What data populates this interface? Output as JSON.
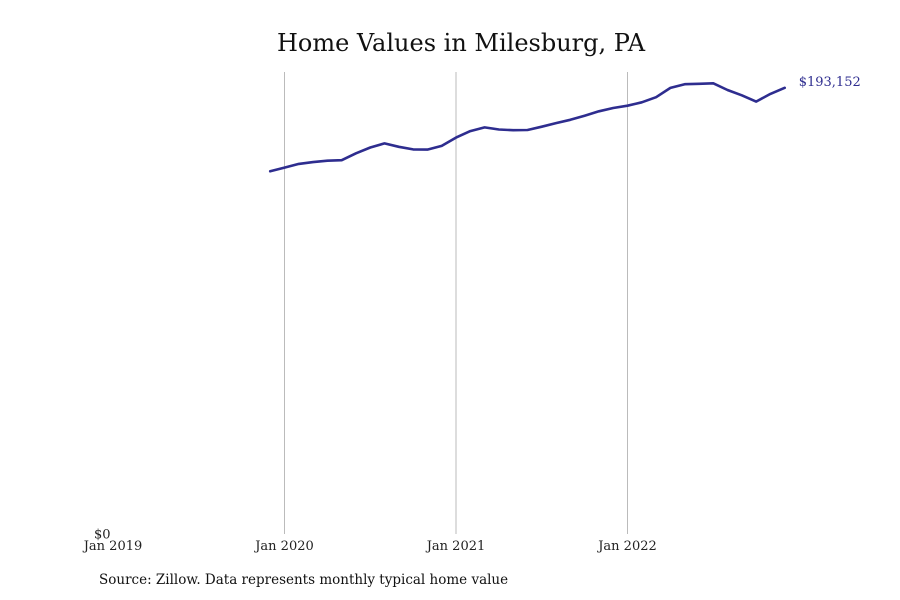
{
  "colors": {
    "line": "#2e2d8f",
    "grid": "#bbbbbb"
  },
  "source_note": "Source: Zillow. Data represents monthly typical home value",
  "chart_data": {
    "type": "line",
    "title": "Home Values in Milesburg, PA",
    "xlabel": "",
    "ylabel": "",
    "x_ticks": [
      {
        "date": "2019-01",
        "label": "Jan 2019"
      },
      {
        "date": "2020-01",
        "label": "Jan 2020"
      },
      {
        "date": "2021-01",
        "label": "Jan 2021"
      },
      {
        "date": "2022-01",
        "label": "Jan 2022"
      }
    ],
    "y_ticks": [
      {
        "value": 0,
        "label": "$0"
      }
    ],
    "xlim": [
      "2019-01",
      "2022-12"
    ],
    "ylim": [
      0,
      200000
    ],
    "grid": "vertical",
    "end_label": "$193,152",
    "series": [
      {
        "x": [
          "2019-12",
          "2020-01",
          "2020-02",
          "2020-03",
          "2020-04",
          "2020-05",
          "2020-06",
          "2020-07",
          "2020-08",
          "2020-09",
          "2020-10",
          "2020-11",
          "2020-12",
          "2021-01",
          "2021-02",
          "2021-03",
          "2021-04",
          "2021-05",
          "2021-06",
          "2021-07",
          "2021-08",
          "2021-09",
          "2021-10",
          "2021-11",
          "2021-12",
          "2022-01",
          "2022-02",
          "2022-03",
          "2022-04",
          "2022-05",
          "2022-06",
          "2022-07",
          "2022-08",
          "2022-09",
          "2022-10",
          "2022-11",
          "2022-12"
        ],
        "values": [
          157000,
          158600,
          160200,
          161000,
          161600,
          161800,
          164800,
          167300,
          169100,
          167600,
          166500,
          166400,
          168000,
          171600,
          174400,
          176000,
          175100,
          174800,
          174900,
          176300,
          177900,
          179300,
          181100,
          183000,
          184400,
          185400,
          186900,
          189100,
          193100,
          194700,
          194900,
          195100,
          192200,
          189900,
          187200,
          190500,
          193152
        ]
      }
    ]
  }
}
